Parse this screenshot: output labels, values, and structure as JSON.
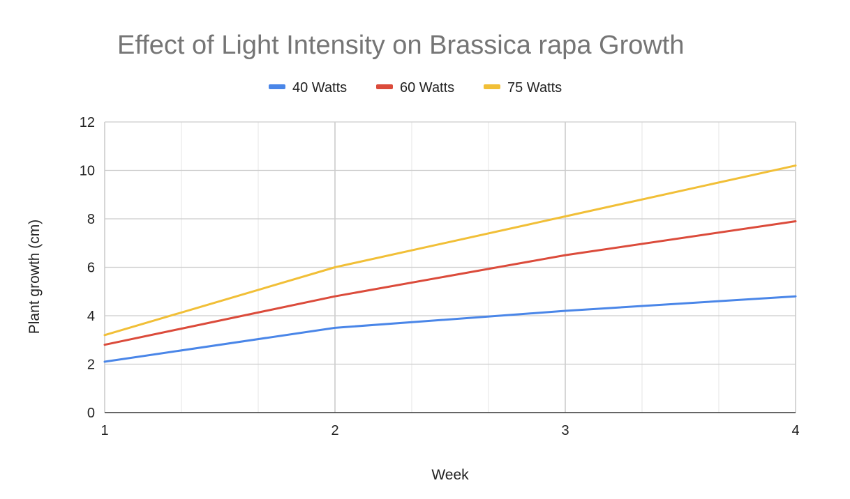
{
  "chart_data": {
    "type": "line",
    "title": "Effect of Light Intensity on Brassica rapa Growth",
    "xlabel": "Week",
    "ylabel": "Plant growth (cm)",
    "x": [
      1,
      2,
      3,
      4
    ],
    "x_ticks": [
      "1",
      "2",
      "3",
      "4"
    ],
    "y_ticks": [
      "0",
      "2",
      "4",
      "6",
      "8",
      "10",
      "12"
    ],
    "xlim": [
      1,
      4
    ],
    "ylim": [
      0,
      12
    ],
    "grid": true,
    "legend_position": "top",
    "series": [
      {
        "name": "40 Watts",
        "color": "#4a86e8",
        "values": [
          2.1,
          3.5,
          4.2,
          4.8
        ]
      },
      {
        "name": "60 Watts",
        "color": "#db4b3b",
        "values": [
          2.8,
          4.8,
          6.5,
          7.9
        ]
      },
      {
        "name": "75 Watts",
        "color": "#f1bf37",
        "values": [
          3.2,
          6.0,
          8.1,
          10.2
        ]
      }
    ]
  }
}
